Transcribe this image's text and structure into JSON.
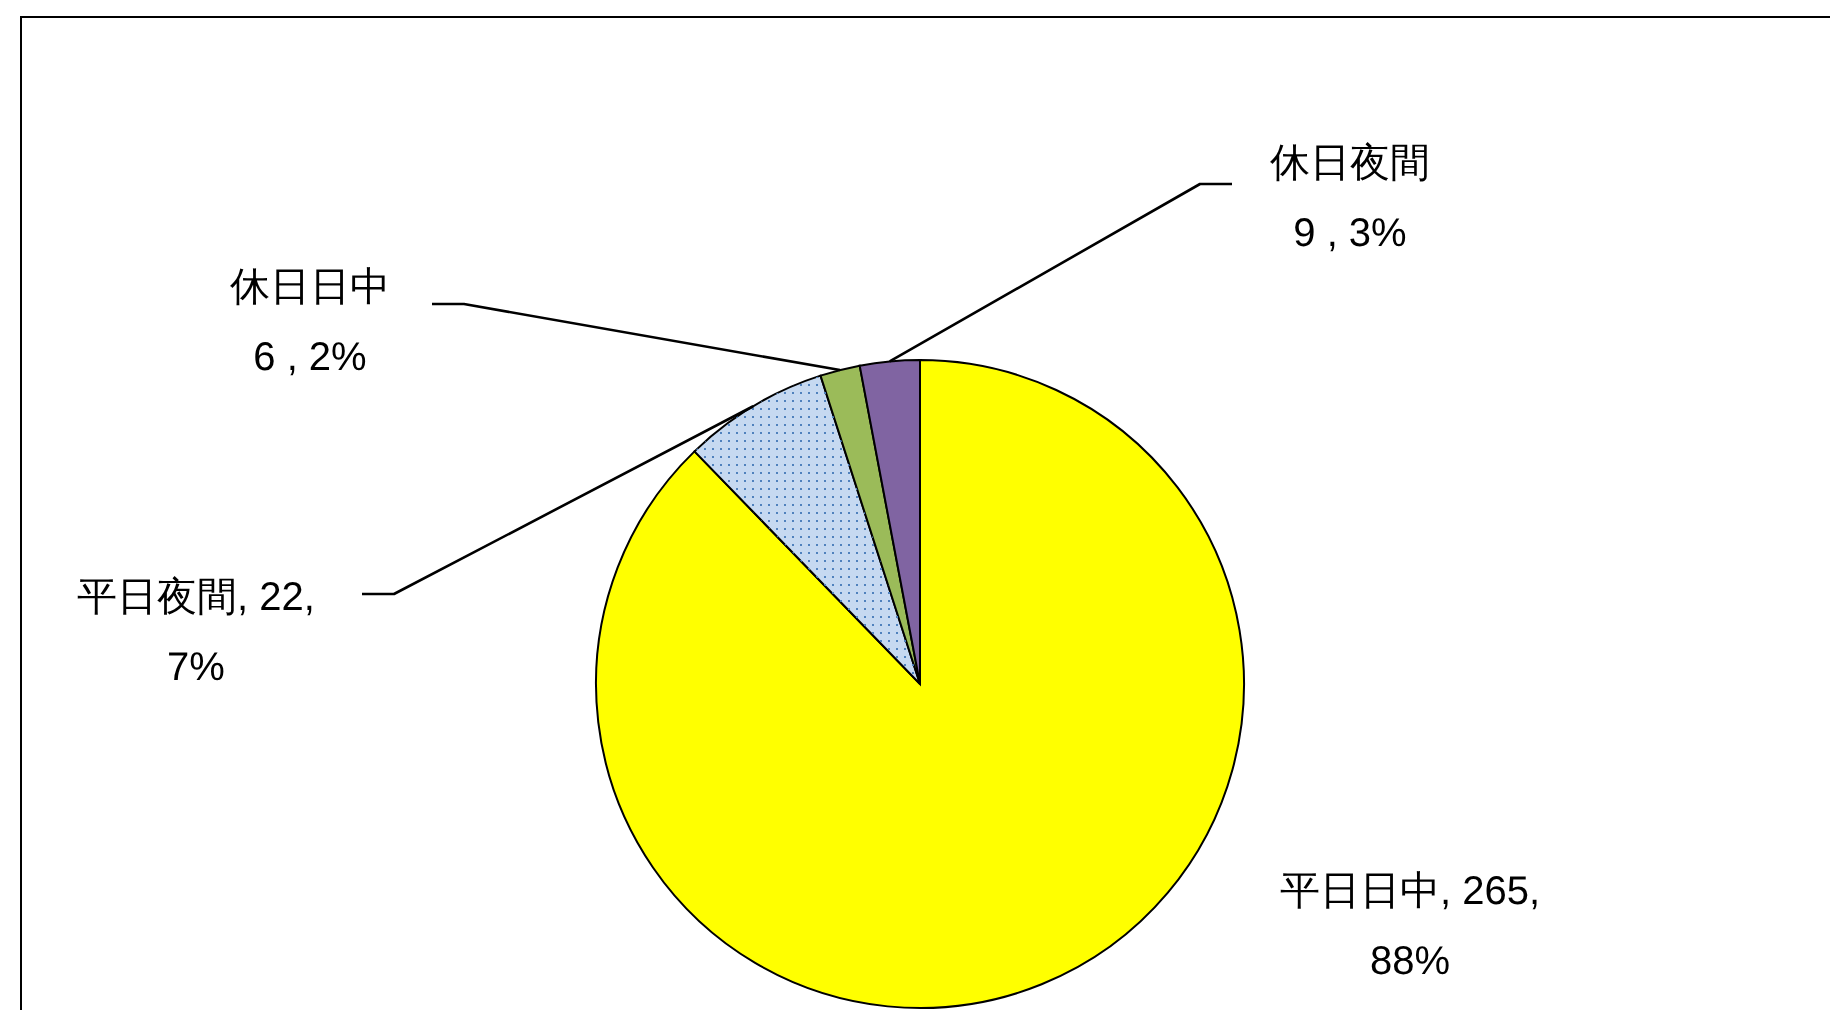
{
  "chart_data": {
    "type": "pie",
    "categories": [
      "平日日中",
      "平日夜間",
      "休日日中",
      "休日夜間"
    ],
    "values": [
      265,
      22,
      6,
      9
    ],
    "colors": [
      "#ffff00",
      "#c6d9f1",
      "#9bbb59",
      "#8064a2"
    ],
    "value_labels": [
      ", 265,\n88%",
      ", 22,\n7%",
      "\n6 , 2%",
      "\n9 , 3%"
    ]
  }
}
